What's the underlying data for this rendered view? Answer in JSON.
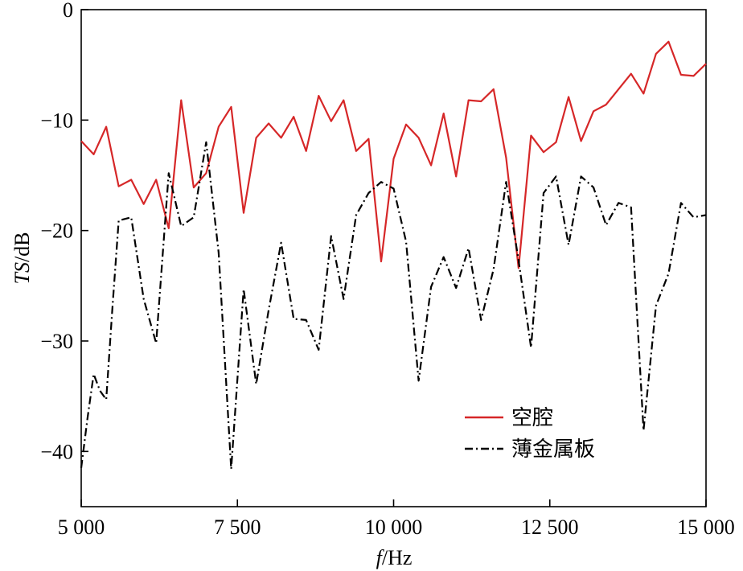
{
  "chart_data": {
    "type": "line",
    "xlabel_italic": "f",
    "xlabel_rest": "/Hz",
    "ylabel_italic": "TS",
    "ylabel_rest": "/dB",
    "xlim": [
      5000,
      15000
    ],
    "ylim": [
      -45,
      0
    ],
    "x_ticks": [
      {
        "value": 5000,
        "label": "5 000"
      },
      {
        "value": 7500,
        "label": "7 500"
      },
      {
        "value": 10000,
        "label": "10 000"
      },
      {
        "value": 12500,
        "label": "12 500"
      },
      {
        "value": 15000,
        "label": "15 000"
      }
    ],
    "y_ticks": [
      {
        "value": 0,
        "label": "0"
      },
      {
        "value": -10,
        "label": "−10"
      },
      {
        "value": -20,
        "label": "−20"
      },
      {
        "value": -30,
        "label": "−30"
      },
      {
        "value": -40,
        "label": "−40"
      }
    ],
    "grid": false,
    "legend_position": "bottom-right",
    "series": [
      {
        "name": "空腔",
        "color": "#d62728",
        "style": "solid",
        "x": [
          5000,
          5200,
          5400,
          5600,
          5800,
          6000,
          6200,
          6400,
          6600,
          6800,
          7000,
          7200,
          7400,
          7600,
          7800,
          8000,
          8200,
          8400,
          8600,
          8800,
          9000,
          9200,
          9400,
          9600,
          9800,
          10000,
          10200,
          10400,
          10600,
          10800,
          11000,
          11200,
          11400,
          11600,
          11800,
          12000,
          12200,
          12400,
          12600,
          12800,
          13000,
          13200,
          13400,
          13600,
          13800,
          14000,
          14200,
          14400,
          14600,
          14800,
          15000
        ],
        "y": [
          -11.9,
          -13.1,
          -10.6,
          -16.0,
          -15.4,
          -17.6,
          -15.4,
          -19.8,
          -8.2,
          -16.1,
          -14.8,
          -10.6,
          -8.8,
          -18.4,
          -11.6,
          -10.3,
          -11.6,
          -9.7,
          -12.8,
          -7.8,
          -10.1,
          -8.2,
          -12.8,
          -11.7,
          -22.8,
          -13.5,
          -10.4,
          -11.6,
          -14.1,
          -9.4,
          -15.1,
          -8.2,
          -8.3,
          -7.2,
          -13.4,
          -23.4,
          -11.4,
          -12.9,
          -12.0,
          -7.9,
          -11.9,
          -9.2,
          -8.6,
          -7.2,
          -5.8,
          -7.6,
          -4.0,
          -2.9,
          -5.9,
          -6.0,
          -4.9
        ]
      },
      {
        "name": "薄金属板",
        "color": "#000000",
        "style": "dash-dot",
        "x": [
          5000,
          5100,
          5200,
          5300,
          5400,
          5500,
          5600,
          5800,
          6000,
          6200,
          6400,
          6600,
          6800,
          7000,
          7200,
          7400,
          7600,
          7800,
          8000,
          8200,
          8400,
          8600,
          8800,
          9000,
          9200,
          9400,
          9600,
          9800,
          10000,
          10200,
          10400,
          10600,
          10800,
          11000,
          11200,
          11400,
          11600,
          11800,
          12000,
          12200,
          12400,
          12600,
          12800,
          13000,
          13200,
          13400,
          13600,
          13800,
          14000,
          14200,
          14400,
          14600,
          14800,
          15000
        ],
        "y": [
          -41.5,
          -37.0,
          -33.0,
          -34.5,
          -35.3,
          -27.0,
          -19.1,
          -18.8,
          -26.2,
          -30.2,
          -14.8,
          -19.6,
          -18.8,
          -12.0,
          -22.0,
          -41.6,
          -25.3,
          -33.9,
          -27.2,
          -21.1,
          -28.0,
          -28.1,
          -30.8,
          -20.5,
          -26.2,
          -18.6,
          -16.6,
          -15.6,
          -16.2,
          -21.0,
          -33.6,
          -25.1,
          -22.4,
          -25.2,
          -21.6,
          -28.1,
          -23.5,
          -15.6,
          -22.7,
          -30.6,
          -16.6,
          -15.1,
          -21.3,
          -15.1,
          -16.1,
          -19.5,
          -17.5,
          -17.9,
          -38.1,
          -26.8,
          -23.9,
          -17.5,
          -18.8,
          -18.6
        ]
      }
    ]
  }
}
